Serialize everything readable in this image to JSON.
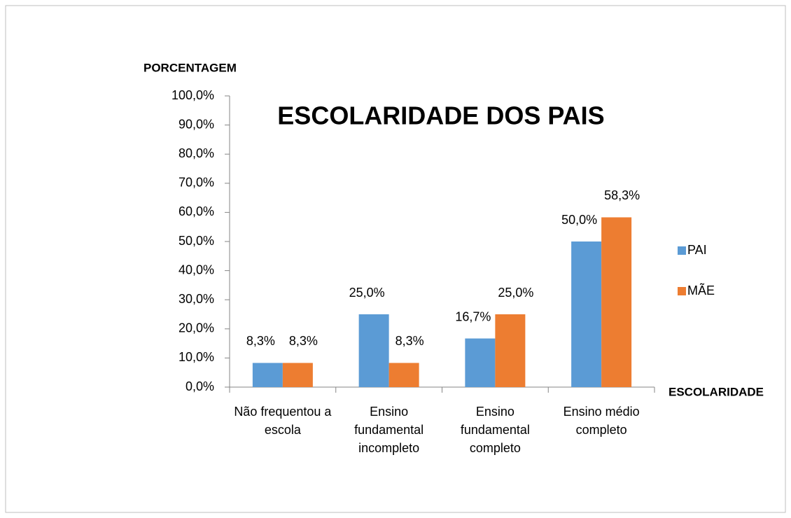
{
  "chart_data": {
    "type": "bar",
    "title": "ESCOLARIDADE DOS PAIS",
    "y_label": "PORCENTAGEM",
    "x_label": "ESCOLARIDADE",
    "categories": [
      "Não frequentou a escola",
      "Ensino fundamental incompleto",
      "Ensino fundamental completo",
      "Ensino médio completo"
    ],
    "series": [
      {
        "name": "PAI",
        "color": "#5b9bd5",
        "values": [
          8.3,
          25.0,
          16.7,
          50.0
        ],
        "value_labels": [
          "8,3%",
          "25,0%",
          "16,7%",
          "50,0%"
        ]
      },
      {
        "name": "MÃE",
        "color": "#ed7d31",
        "values": [
          8.3,
          8.3,
          25.0,
          58.3
        ],
        "value_labels": [
          "8,3%",
          "8,3%",
          "25,0%",
          "58,3%"
        ]
      }
    ],
    "ylim": [
      0,
      100
    ],
    "yticks": [
      {
        "value": 0,
        "label": "0,0%"
      },
      {
        "value": 10,
        "label": "10,0%"
      },
      {
        "value": 20,
        "label": "20,0%"
      },
      {
        "value": 30,
        "label": "30,0%"
      },
      {
        "value": 40,
        "label": "40,0%"
      },
      {
        "value": 50,
        "label": "50,0%"
      },
      {
        "value": 60,
        "label": "60,0%"
      },
      {
        "value": 70,
        "label": "70,0%"
      },
      {
        "value": 80,
        "label": "80,0%"
      },
      {
        "value": 90,
        "label": "90,0%"
      },
      {
        "value": 100,
        "label": "100,0%"
      }
    ],
    "legend": "right",
    "grid": false
  }
}
